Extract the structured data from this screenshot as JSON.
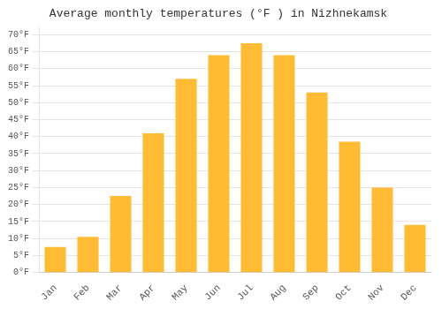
{
  "chart_data": {
    "type": "bar",
    "title": "Average monthly temperatures (°F ) in Nizhnekamsk",
    "categories": [
      "Jan",
      "Feb",
      "Mar",
      "Apr",
      "May",
      "Jun",
      "Jul",
      "Aug",
      "Sep",
      "Oct",
      "Nov",
      "Dec"
    ],
    "values": [
      7.5,
      10.5,
      22.5,
      41,
      57,
      64,
      67.5,
      64,
      53,
      38.5,
      25,
      14
    ],
    "color": "#FFBB33",
    "ylim": [
      0,
      72
    ],
    "yticks": [
      {
        "value": 0,
        "label": "0°F"
      },
      {
        "value": 5,
        "label": "5°F"
      },
      {
        "value": 10,
        "label": "10°F"
      },
      {
        "value": 15,
        "label": "15°F"
      },
      {
        "value": 20,
        "label": "20°F"
      },
      {
        "value": 25,
        "label": "25°F"
      },
      {
        "value": 30,
        "label": "30°F"
      },
      {
        "value": 35,
        "label": "35°F"
      },
      {
        "value": 40,
        "label": "40°F"
      },
      {
        "value": 45,
        "label": "45°F"
      },
      {
        "value": 50,
        "label": "50°F"
      },
      {
        "value": 55,
        "label": "55°F"
      },
      {
        "value": 60,
        "label": "60°F"
      },
      {
        "value": 65,
        "label": "65°F"
      },
      {
        "value": 70,
        "label": "70°F"
      }
    ],
    "grid": true
  }
}
